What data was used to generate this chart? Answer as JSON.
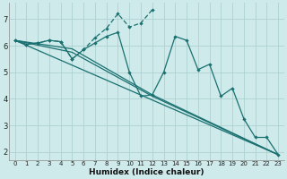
{
  "xlabel": "Humidex (Indice chaleur)",
  "bg_color": "#ceeaea",
  "line_color": "#1a7070",
  "grid_color": "#aed0d0",
  "xlim": [
    -0.5,
    23.5
  ],
  "ylim": [
    1.7,
    7.6
  ],
  "xticks": [
    0,
    1,
    2,
    3,
    4,
    5,
    6,
    7,
    8,
    9,
    10,
    11,
    12,
    13,
    14,
    15,
    16,
    17,
    18,
    19,
    20,
    21,
    22,
    23
  ],
  "yticks": [
    2,
    3,
    4,
    5,
    6,
    7
  ],
  "line1_x": [
    0,
    1,
    2,
    3,
    4,
    5,
    6,
    7,
    8,
    9,
    10,
    11,
    12,
    13,
    14,
    15,
    16,
    17,
    18,
    19,
    20,
    21,
    22,
    23
  ],
  "line1_y": [
    6.2,
    6.05,
    6.1,
    6.2,
    6.15,
    5.5,
    5.85,
    6.1,
    6.35,
    6.5,
    5.0,
    4.1,
    4.15,
    5.0,
    6.35,
    6.2,
    5.1,
    5.3,
    4.1,
    4.4,
    3.25,
    2.55,
    2.55,
    1.9
  ],
  "line2_x": [
    0,
    1,
    2,
    3,
    4,
    5,
    6,
    7,
    8,
    9,
    10,
    11,
    12
  ],
  "line2_y": [
    6.2,
    6.05,
    6.1,
    6.2,
    6.15,
    5.5,
    5.85,
    6.3,
    6.65,
    7.2,
    6.7,
    6.85,
    7.35
  ],
  "line3_x": [
    0,
    23
  ],
  "line3_y": [
    6.2,
    1.9
  ],
  "line4_x": [
    0,
    5,
    12,
    23
  ],
  "line4_y": [
    6.2,
    5.88,
    4.15,
    1.9
  ],
  "line5_x": [
    0,
    5,
    12,
    23
  ],
  "line5_y": [
    6.2,
    5.75,
    4.1,
    1.9
  ]
}
